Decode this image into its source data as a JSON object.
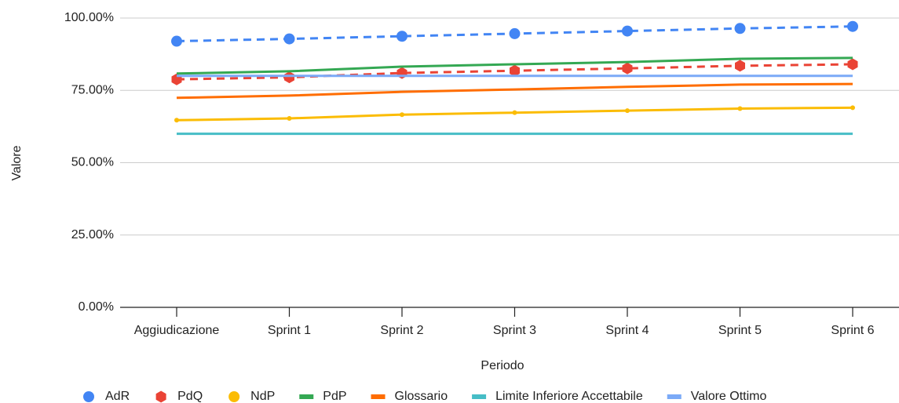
{
  "chart_data": {
    "type": "line",
    "x_label": "Periodo",
    "y_label": "Valore",
    "categories": [
      "Aggiudicazione",
      "Sprint 1",
      "Sprint 2",
      "Sprint 3",
      "Sprint 4",
      "Sprint 5",
      "Sprint 6"
    ],
    "ylim": [
      0,
      100
    ],
    "yticks": [
      {
        "value": 0,
        "label": "0.00%"
      },
      {
        "value": 25,
        "label": "25.00%"
      },
      {
        "value": 50,
        "label": "50.00%"
      },
      {
        "value": 75,
        "label": "75.00%"
      },
      {
        "value": 100,
        "label": "100.00%"
      }
    ],
    "grid": true,
    "legend": "bottom",
    "series": [
      {
        "name": "AdR",
        "color": "#4285f4",
        "dashed": true,
        "marker": "circle",
        "values": [
          92,
          92.8,
          93.7,
          94.6,
          95.5,
          96.4,
          97.1
        ]
      },
      {
        "name": "PdQ",
        "color": "#ea4335",
        "dashed": true,
        "marker": "hexagon",
        "values": [
          78.8,
          79.5,
          81,
          81.8,
          82.6,
          83.5,
          84
        ]
      },
      {
        "name": "NdP",
        "color": "#fbbc04",
        "dashed": false,
        "marker": "dot",
        "values": [
          64.7,
          65.3,
          66.6,
          67.3,
          68,
          68.7,
          69
        ]
      },
      {
        "name": "PdP",
        "color": "#34a853",
        "dashed": false,
        "marker": null,
        "values": [
          80.8,
          81.6,
          83.2,
          84,
          84.8,
          85.9,
          86.2
        ]
      },
      {
        "name": "Glossario",
        "color": "#ff6d01",
        "dashed": false,
        "marker": null,
        "values": [
          72.4,
          73.2,
          74.5,
          75.3,
          76.2,
          77,
          77.2
        ]
      },
      {
        "name": "Limite Inferiore Accettabile",
        "color": "#46bdc6",
        "dashed": false,
        "marker": null,
        "values": [
          60,
          60,
          60,
          60,
          60,
          60,
          60
        ]
      },
      {
        "name": "Valore Ottimo",
        "color": "#7baaf7",
        "dashed": false,
        "marker": null,
        "values": [
          80,
          80,
          80,
          80,
          80,
          80,
          80
        ]
      }
    ]
  }
}
